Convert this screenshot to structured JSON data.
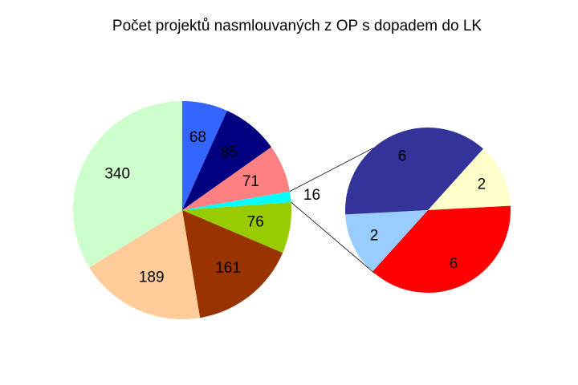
{
  "chart_data": {
    "type": "pie",
    "title": "Počet projektů nasmlouvaných z OP s dopadem do LK",
    "main": {
      "slices": [
        {
          "label": "68",
          "value": 68,
          "color": "#3366FF"
        },
        {
          "label": "85",
          "value": 85,
          "color": "#000080"
        },
        {
          "label": "71",
          "value": 71,
          "color": "#FF8080"
        },
        {
          "label": "16",
          "value": 16,
          "color": "#00FFFF"
        },
        {
          "label": "76",
          "value": 76,
          "color": "#99CC00"
        },
        {
          "label": "161",
          "value": 161,
          "color": "#993300"
        },
        {
          "label": "189",
          "value": 189,
          "color": "#FFCC99"
        },
        {
          "label": "340",
          "value": 340,
          "color": "#CCFFCC"
        }
      ]
    },
    "detail": {
      "expands": "16",
      "slices": [
        {
          "label": "2",
          "value": 2,
          "color": "#FFFFCC"
        },
        {
          "label": "6",
          "value": 6,
          "color": "#FF0000"
        },
        {
          "label": "2",
          "value": 2,
          "color": "#99CCFF"
        },
        {
          "label": "6",
          "value": 6,
          "color": "#333399"
        }
      ]
    }
  }
}
